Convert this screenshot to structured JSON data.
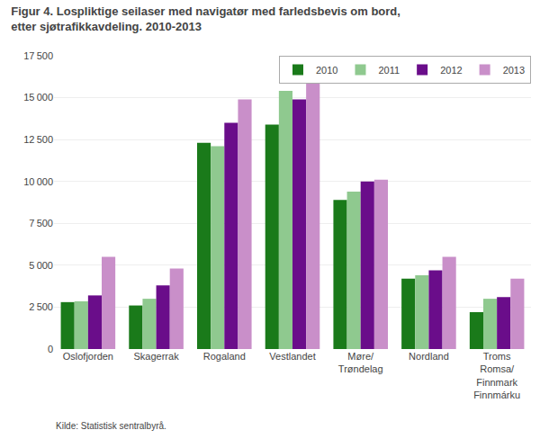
{
  "chart_data": {
    "type": "bar",
    "title": "Figur 4. Lospliktige seilaser med navigatør med farledsbevis om bord,\netter sjøtrafikkavdeling. 2010-2013",
    "categories": [
      "Oslofjorden",
      "Skagerrak",
      "Rogaland",
      "Vestlandet",
      "Møre/\nTrøndelag",
      "Nordland",
      "Troms\nRomsa/\nFinnmark\nFinnmárku"
    ],
    "series": [
      {
        "name": "2010",
        "color": "#1a7a1a",
        "values": [
          2800,
          2600,
          12300,
          13400,
          8900,
          4200,
          2200
        ]
      },
      {
        "name": "2011",
        "color": "#8fc98f",
        "values": [
          2850,
          3000,
          12100,
          15400,
          9400,
          4400,
          3000
        ]
      },
      {
        "name": "2012",
        "color": "#6a0d8a",
        "values": [
          3200,
          3800,
          13500,
          14900,
          10000,
          4700,
          3100
        ]
      },
      {
        "name": "2013",
        "color": "#c98fc9",
        "values": [
          5500,
          4800,
          14900,
          16500,
          10100,
          5500,
          4200
        ]
      }
    ],
    "ylim": [
      0,
      17500
    ],
    "yticks": [
      0,
      {
        "value": 2500,
        "label": "2 500"
      },
      {
        "value": 5000,
        "label": "5 000"
      },
      {
        "value": 7500,
        "label": "7 500"
      },
      {
        "value": 10000,
        "label": "10 000"
      },
      {
        "value": 12500,
        "label": "12 500"
      },
      {
        "value": 15000,
        "label": "15 000"
      },
      {
        "value": 17500,
        "label": "17 500"
      }
    ],
    "grid": true,
    "legend": "upper right",
    "annotations": [
      "Kilde: Statistisk sentralbyrå."
    ]
  }
}
